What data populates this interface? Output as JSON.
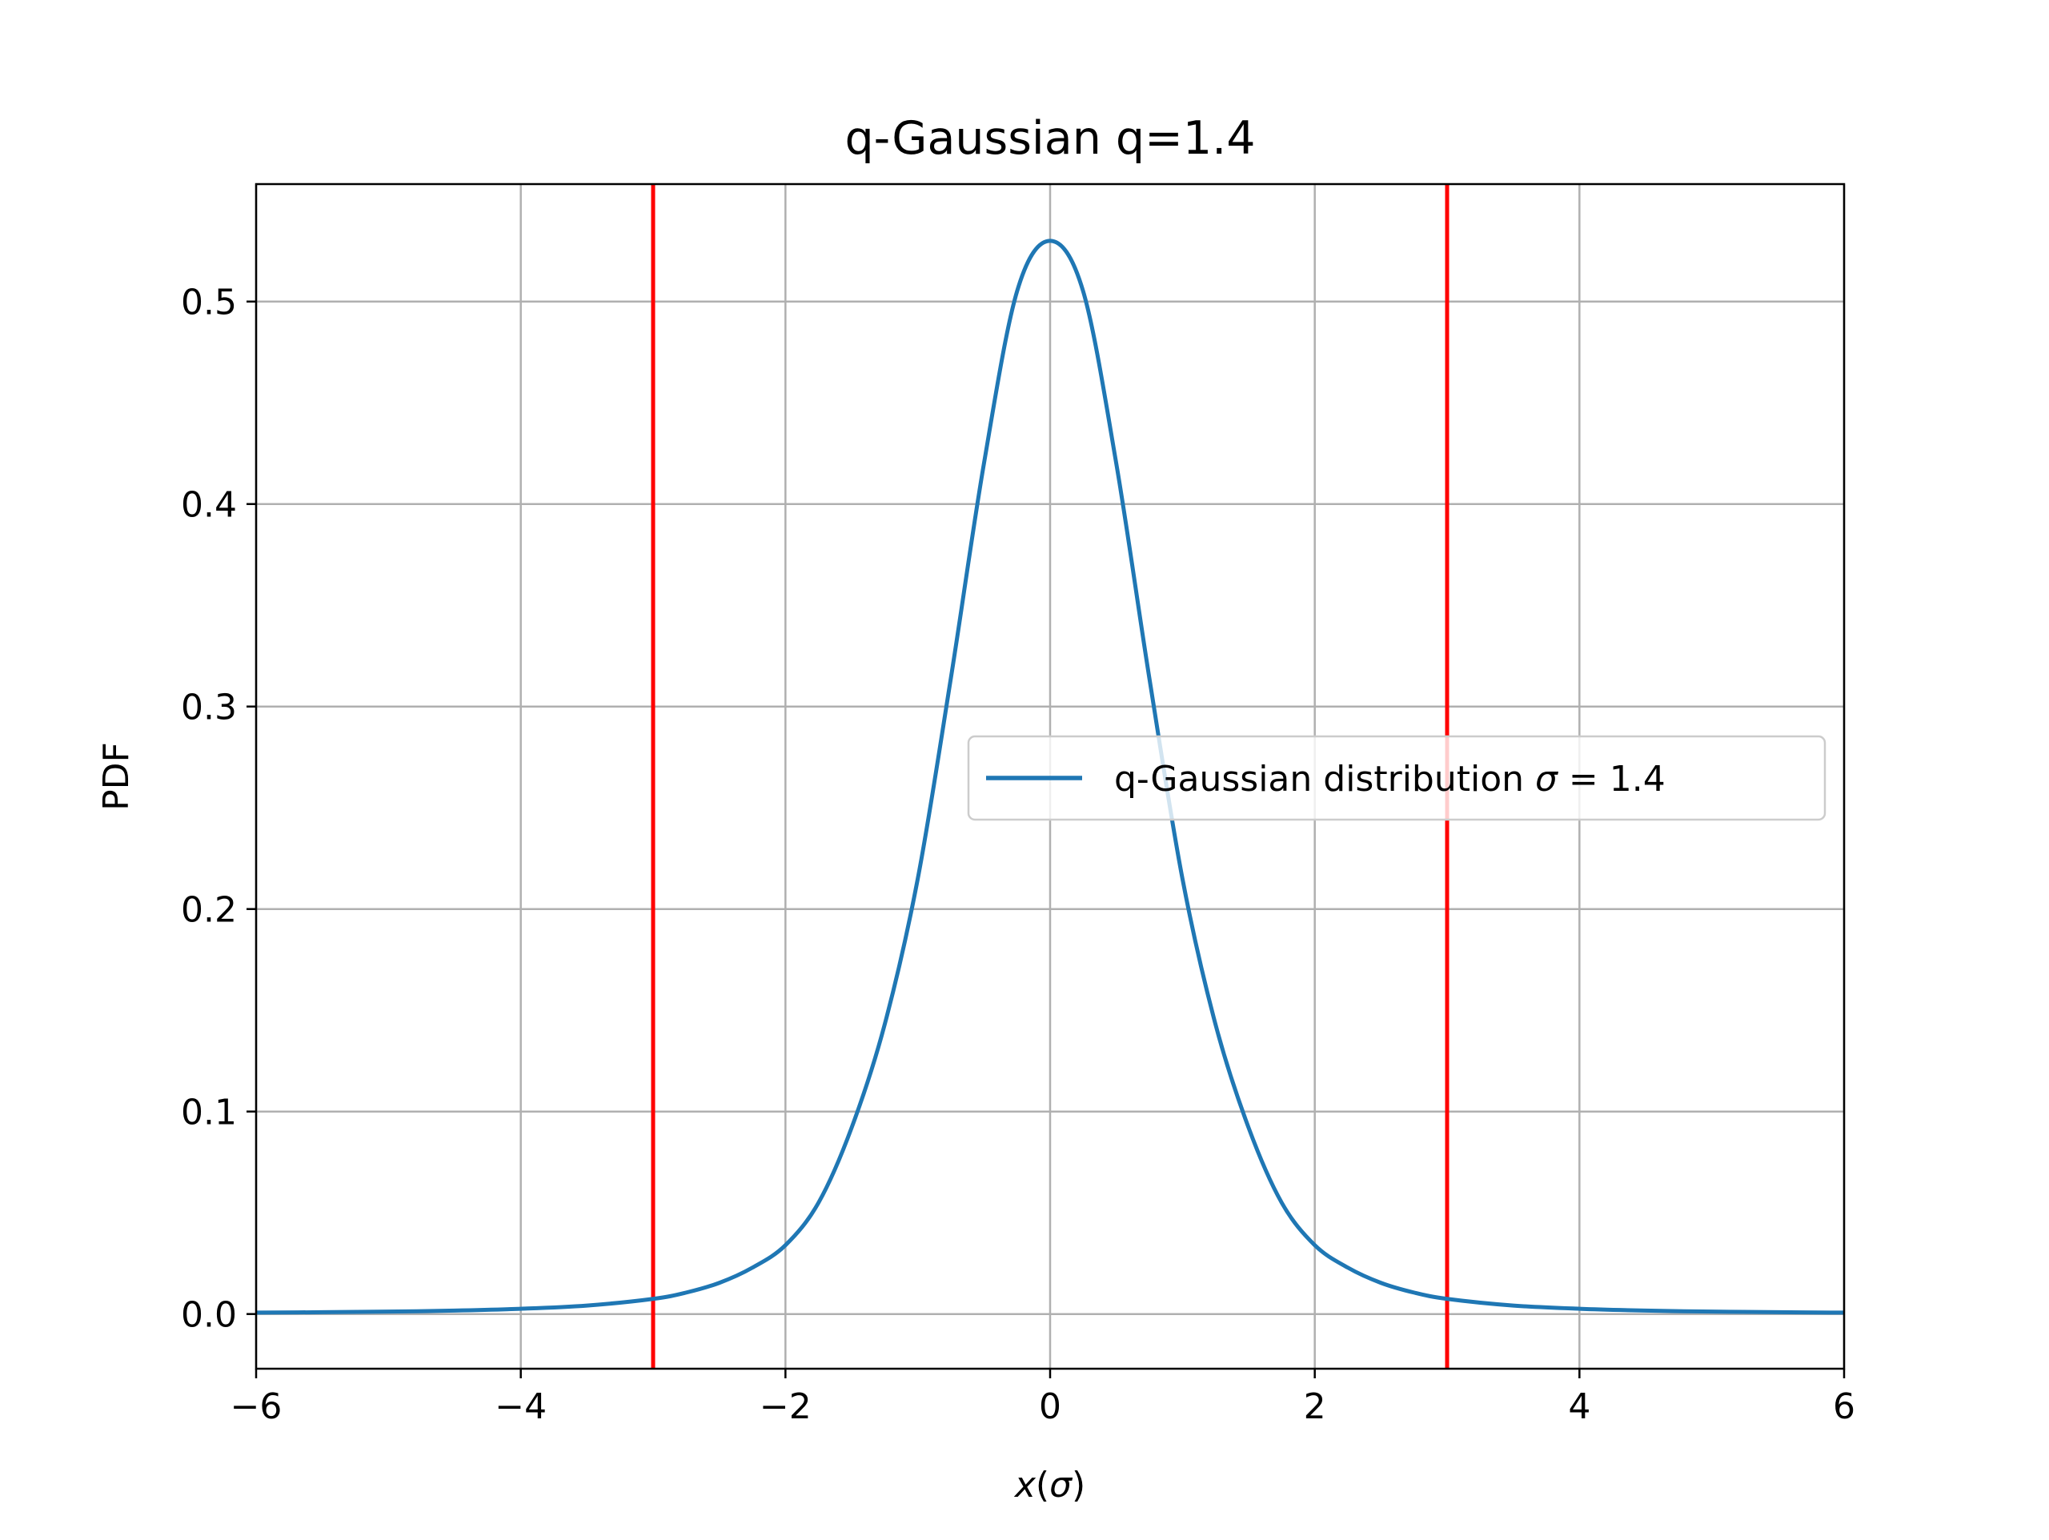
{
  "chart_data": {
    "type": "line",
    "title": "q-Gaussian q=1.4",
    "xlabel": "x(σ)",
    "xlabel_var": "x",
    "xlabel_open": "(",
    "xlabel_sigma": "σ",
    "xlabel_close": ")",
    "ylabel": "PDF",
    "xlim": [
      -6,
      6
    ],
    "ylim": [
      -0.027,
      0.558
    ],
    "grid": true,
    "legend_position": "center-right",
    "x_ticks": [
      {
        "value": -6,
        "label": "−6"
      },
      {
        "value": -4,
        "label": "−4"
      },
      {
        "value": -2,
        "label": "−2"
      },
      {
        "value": 0,
        "label": "0"
      },
      {
        "value": 2,
        "label": "2"
      },
      {
        "value": 4,
        "label": "4"
      },
      {
        "value": 6,
        "label": "6"
      }
    ],
    "y_ticks": [
      {
        "value": 0.0,
        "label": "0.0"
      },
      {
        "value": 0.1,
        "label": "0.1"
      },
      {
        "value": 0.2,
        "label": "0.2"
      },
      {
        "value": 0.3,
        "label": "0.3"
      },
      {
        "value": 0.4,
        "label": "0.4"
      },
      {
        "value": 0.5,
        "label": "0.5"
      }
    ],
    "series": [
      {
        "name": "q-Gaussian distribution σ = 1.4",
        "legend_prefix": "q-Gaussian distribution ",
        "legend_sigma": "σ",
        "legend_suffix": " = 1.4",
        "color": "#1f77b4",
        "x": [
          -6,
          -5.5,
          -5,
          -4.5,
          -4,
          -3.5,
          -3,
          -2.75,
          -2.5,
          -2.25,
          -2,
          -1.75,
          -1.5,
          -1.25,
          -1,
          -0.75,
          -0.5,
          -0.25,
          0,
          0.25,
          0.5,
          0.75,
          1,
          1.25,
          1.5,
          1.75,
          2,
          2.25,
          2.5,
          2.75,
          3,
          3.5,
          4,
          4.5,
          5,
          5.5,
          6
        ],
        "y": [
          0.0007,
          0.0009,
          0.0012,
          0.0017,
          0.0026,
          0.0042,
          0.0075,
          0.0106,
          0.0154,
          0.0229,
          0.034,
          0.055,
          0.092,
          0.143,
          0.215,
          0.314,
          0.42,
          0.505,
          0.53,
          0.505,
          0.42,
          0.314,
          0.215,
          0.143,
          0.092,
          0.055,
          0.034,
          0.0229,
          0.0154,
          0.0106,
          0.0075,
          0.0042,
          0.0026,
          0.0017,
          0.0012,
          0.0009,
          0.0007
        ]
      }
    ],
    "vlines": [
      {
        "x": -3,
        "color": "#ff0000"
      },
      {
        "x": 3,
        "color": "#ff0000"
      }
    ]
  },
  "colors": {
    "grid": "#b0b0b0",
    "axes": "#000000",
    "legend_border": "#cccccc",
    "background": "#ffffff"
  }
}
